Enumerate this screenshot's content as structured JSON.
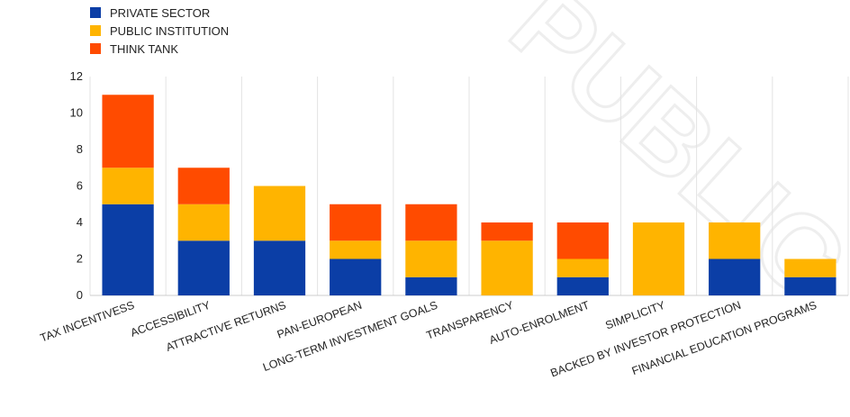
{
  "chart_data": {
    "type": "bar",
    "stacked": true,
    "title": "",
    "xlabel": "",
    "ylabel": "",
    "ylim": [
      0,
      12
    ],
    "yticks": [
      0,
      2,
      4,
      6,
      8,
      10,
      12
    ],
    "grid": "vertical-separators",
    "legend_position": "top-left",
    "categories": [
      "TAX INCENTIVESS",
      "ACCESSIBILITY",
      "ATTRACTIVE RETURNS",
      "PAN-EUROPEAN",
      "LONG-TERM INVESTMENT GOALS",
      "TRANSPARENCY",
      "AUTO-ENROLMENT",
      "SIMPLICITY",
      "BACKED BY INVESTOR PROTECTION",
      "FINANCIAL EDUCATION PROGRAMS"
    ],
    "series": [
      {
        "name": "PRIVATE SECTOR",
        "color": "#0b3ea6",
        "values": [
          5,
          3,
          3,
          2,
          1,
          0,
          1,
          0,
          2,
          1
        ]
      },
      {
        "name": "PUBLIC INSTITUTION",
        "color": "#ffb400",
        "values": [
          2,
          2,
          3,
          1,
          2,
          3,
          1,
          4,
          2,
          1
        ]
      },
      {
        "name": "THINK TANK",
        "color": "#ff4b00",
        "values": [
          4,
          2,
          0,
          2,
          2,
          1,
          2,
          0,
          0,
          0
        ]
      }
    ]
  },
  "watermark": {
    "text": "PUBLIC",
    "color": "#eeeeee"
  }
}
